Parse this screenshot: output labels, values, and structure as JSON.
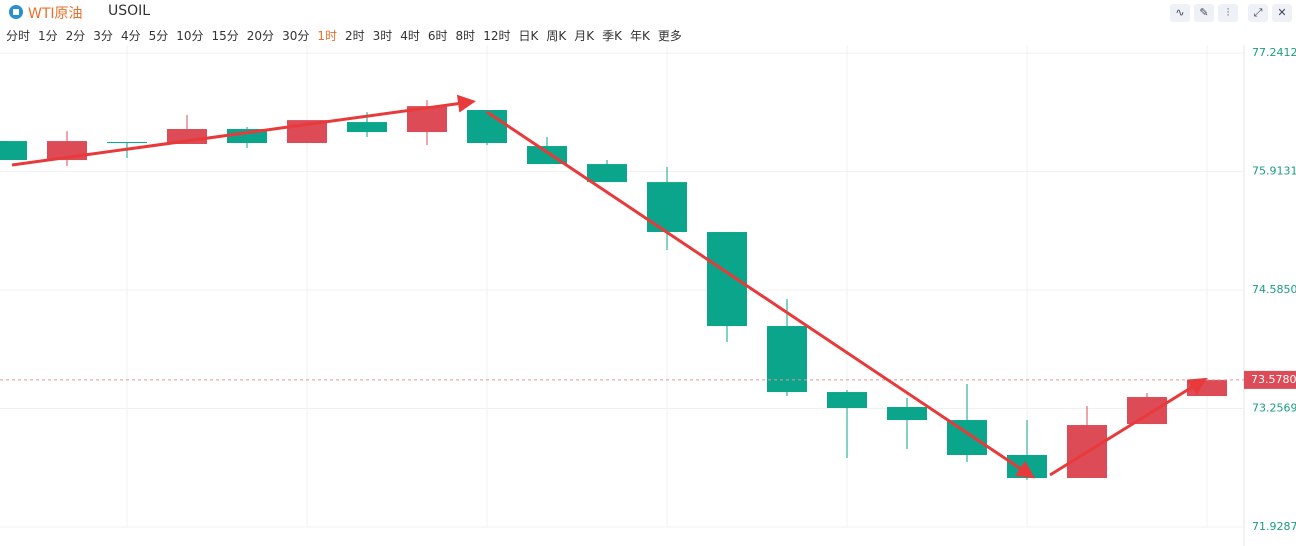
{
  "header": {
    "title": "WTI原油",
    "symbol": "USOIL",
    "intervals": [
      "分时",
      "1分",
      "2分",
      "3分",
      "4分",
      "5分",
      "10分",
      "15分",
      "20分",
      "30分",
      "1时",
      "2时",
      "3时",
      "4时",
      "6时",
      "8时",
      "12时",
      "日K",
      "周K",
      "月K",
      "季K",
      "年K",
      "更多"
    ],
    "active": 10
  },
  "chart_data": {
    "type": "candlestick",
    "up_color": "#dd4b57",
    "down_color": "#0aa58a",
    "open": [
      76.256,
      76.043,
      76.245,
      76.223,
      76.391,
      76.234,
      76.469,
      76.357,
      76.604,
      76.2,
      75.998,
      75.796,
      75.236,
      74.182,
      73.442,
      73.274,
      73.128,
      72.736,
      72.478,
      73.083,
      73.397
    ],
    "high": [
      76.256,
      76.368,
      76.245,
      76.548,
      76.413,
      76.491,
      76.581,
      76.715,
      76.604,
      76.301,
      76.043,
      75.965,
      75.236,
      74.485,
      73.465,
      73.375,
      73.532,
      73.128,
      73.285,
      73.431,
      73.599
    ],
    "low": [
      76.043,
      75.976,
      76.066,
      76.223,
      76.178,
      76.234,
      76.301,
      76.211,
      76.211,
      75.998,
      75.796,
      75.034,
      74.003,
      73.397,
      72.702,
      72.803,
      72.657,
      72.456,
      72.478,
      73.083,
      73.397
    ],
    "close": [
      76.043,
      76.256,
      76.234,
      76.391,
      76.234,
      76.491,
      76.357,
      76.648,
      76.234,
      75.998,
      75.796,
      75.236,
      74.182,
      73.442,
      73.263,
      73.128,
      72.736,
      72.478,
      73.072,
      73.386,
      73.578
    ],
    "ylim": [
      71.9287,
      77.333
    ],
    "yticks": [
      77.2412,
      75.9131,
      {
        "value": 74.585,
        "label": "74.5850"
      },
      73.2569,
      71.9287
    ],
    "current_price": {
      "value": 73.578,
      "label": "73.5780"
    },
    "grid": true
  }
}
